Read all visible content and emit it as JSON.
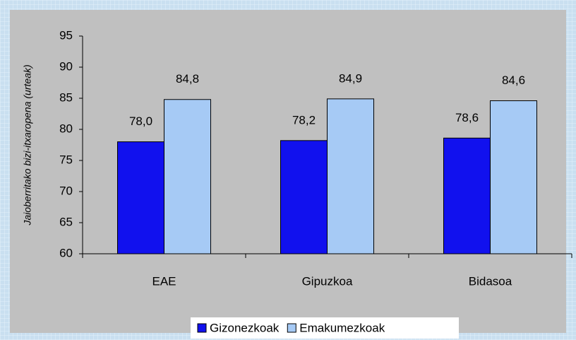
{
  "chart_data": {
    "type": "bar",
    "y_label": "Jaioberritako bizi-itxaropena (urteak)",
    "categories": [
      "EAE",
      "Gipuzkoa",
      "Bidasoa"
    ],
    "series": [
      {
        "name": "Gizonezkoak",
        "color": "#1111ee",
        "values": [
          78.0,
          78.2,
          78.6
        ],
        "value_labels": [
          "78,0",
          "78,2",
          "78,6"
        ]
      },
      {
        "name": "Emakumezkoak",
        "color": "#a6caf5",
        "values": [
          84.8,
          84.9,
          84.6
        ],
        "value_labels": [
          "84,8",
          "84,9",
          "84,6"
        ]
      }
    ],
    "ylim": [
      60,
      95
    ],
    "yticks": [
      60,
      65,
      70,
      75,
      80,
      85,
      90,
      95
    ],
    "grid": false,
    "legend": "bottom"
  }
}
